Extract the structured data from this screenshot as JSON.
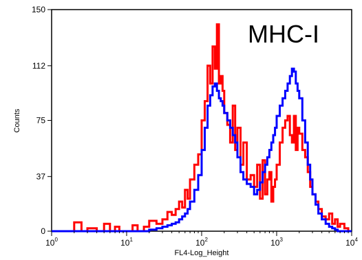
{
  "chart_data": {
    "type": "line",
    "title": "",
    "xlabel": "FL4-Log_Height",
    "ylabel": "Counts",
    "x_scale": "log",
    "xlim": [
      1,
      10000
    ],
    "ylim": [
      0,
      150
    ],
    "x_ticks": [
      {
        "base": "10",
        "exp": "0"
      },
      {
        "base": "10",
        "exp": "1"
      },
      {
        "base": "10",
        "exp": "2"
      },
      {
        "base": "10",
        "exp": "3"
      },
      {
        "base": "10",
        "exp": "4"
      }
    ],
    "y_ticks": [
      "0",
      "37",
      "75",
      "112",
      "150"
    ],
    "annotation": "MHC-I",
    "grid": false,
    "series": [
      {
        "color": "#ff0000",
        "x": [
          1,
          1.5,
          2,
          2.5,
          3,
          4,
          5,
          6,
          7,
          8,
          10,
          12,
          14,
          17,
          20,
          25,
          30,
          35,
          40,
          45,
          50,
          55,
          60,
          65,
          70,
          80,
          90,
          100,
          110,
          120,
          130,
          140,
          150,
          160,
          170,
          180,
          190,
          200,
          220,
          240,
          260,
          280,
          300,
          330,
          360,
          400,
          450,
          500,
          550,
          600,
          650,
          700,
          750,
          800,
          850,
          900,
          950,
          1000,
          1100,
          1200,
          1300,
          1400,
          1500,
          1600,
          1700,
          1800,
          1900,
          2000,
          2200,
          2400,
          2600,
          2800,
          3000,
          3300,
          3600,
          4000,
          4500,
          5000,
          5500,
          6000,
          6500,
          7000,
          8000,
          9000,
          10000
        ],
        "values": [
          0,
          0,
          6,
          0,
          2,
          0,
          5,
          0,
          3,
          0,
          0,
          4,
          0,
          3,
          7,
          5,
          8,
          13,
          11,
          15,
          20,
          16,
          28,
          22,
          35,
          45,
          52,
          75,
          88,
          112,
          100,
          125,
          110,
          140,
          100,
          105,
          95,
          80,
          72,
          60,
          85,
          55,
          70,
          45,
          60,
          35,
          38,
          30,
          45,
          22,
          48,
          25,
          35,
          40,
          20,
          30,
          35,
          45,
          60,
          70,
          75,
          78,
          65,
          60,
          78,
          55,
          70,
          66,
          55,
          50,
          40,
          30,
          25,
          20,
          15,
          10,
          8,
          12,
          5,
          8,
          3,
          5,
          2,
          0,
          0
        ]
      },
      {
        "color": "#0000ff",
        "x": [
          1,
          1.5,
          2,
          2.5,
          3,
          4,
          5,
          6,
          7,
          8,
          10,
          12,
          14,
          17,
          20,
          25,
          30,
          35,
          40,
          45,
          50,
          55,
          60,
          65,
          70,
          80,
          90,
          100,
          110,
          120,
          130,
          140,
          150,
          160,
          170,
          180,
          190,
          200,
          220,
          240,
          260,
          280,
          300,
          330,
          360,
          400,
          450,
          500,
          550,
          600,
          650,
          700,
          750,
          800,
          850,
          900,
          950,
          1000,
          1100,
          1200,
          1300,
          1400,
          1500,
          1600,
          1700,
          1800,
          1900,
          2000,
          2200,
          2400,
          2600,
          2800,
          3000,
          3300,
          3600,
          4000,
          4500,
          5000,
          5500,
          6000,
          6500,
          7000,
          8000,
          9000,
          10000
        ],
        "values": [
          0,
          0,
          0,
          0,
          0,
          0,
          0,
          0,
          0,
          0,
          0,
          0,
          0,
          0,
          1,
          2,
          3,
          4,
          5,
          6,
          8,
          10,
          12,
          15,
          20,
          28,
          38,
          55,
          70,
          85,
          92,
          98,
          100,
          95,
          90,
          88,
          85,
          80,
          75,
          70,
          65,
          60,
          50,
          40,
          35,
          32,
          30,
          25,
          28,
          33,
          40,
          45,
          50,
          55,
          60,
          65,
          70,
          78,
          85,
          90,
          95,
          100,
          105,
          110,
          108,
          100,
          95,
          90,
          75,
          60,
          45,
          35,
          25,
          18,
          12,
          8,
          5,
          3,
          2,
          1,
          0,
          0,
          0,
          0,
          0
        ]
      }
    ]
  }
}
